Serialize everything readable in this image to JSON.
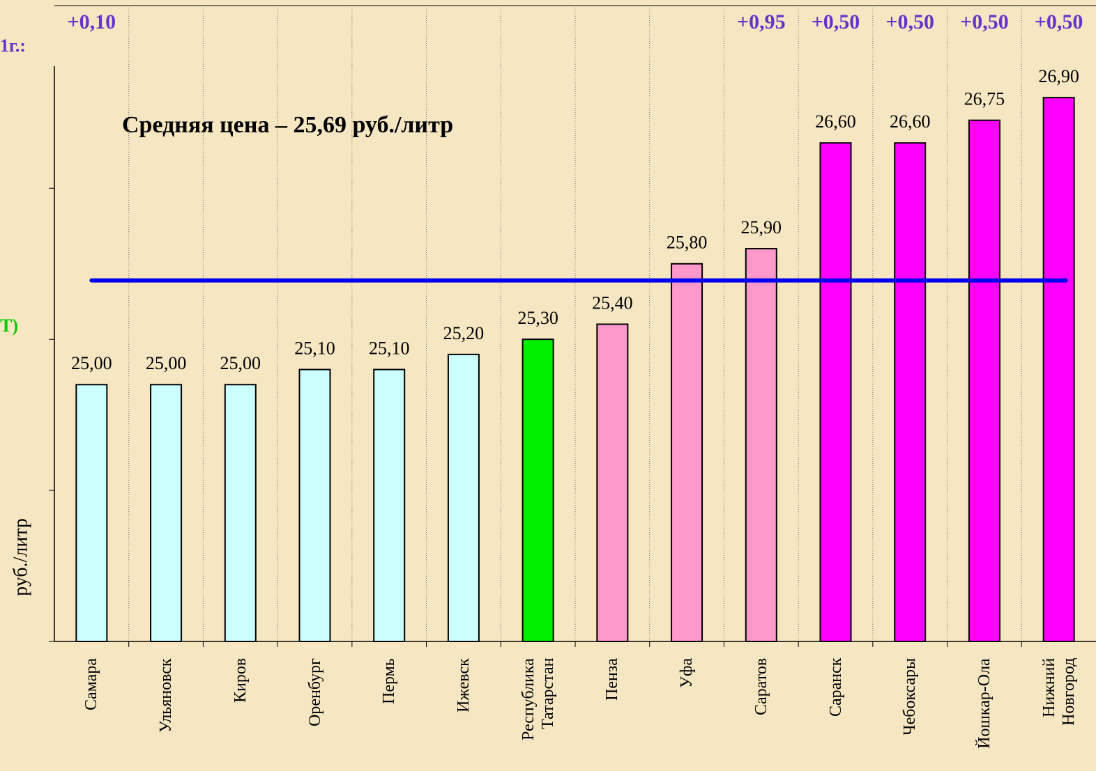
{
  "chart_data": {
    "type": "bar",
    "title": "Средняя цена – 25,69 руб./литр",
    "y_label": "руб./литр",
    "side_notes": [
      "1г.:",
      "Т)"
    ],
    "categories": [
      "Самара",
      "Ульяновск",
      "Киров",
      "Оренбург",
      "Пермь",
      "Ижевск",
      "Республика Татарстан",
      "Пенза",
      "Уфа",
      "Саратов",
      "Саранск",
      "Чебоксары",
      "Йошкар-Ола",
      "Нижний Новгород"
    ],
    "values": [
      25.0,
      25.0,
      25.0,
      25.1,
      25.1,
      25.2,
      25.3,
      25.4,
      25.8,
      25.9,
      26.6,
      26.6,
      26.75,
      26.9
    ],
    "value_labels": [
      "25,00",
      "25,00",
      "25,00",
      "25,10",
      "25,10",
      "25,20",
      "25,30",
      "25,40",
      "25,80",
      "25,90",
      "26,60",
      "26,60",
      "26,75",
      "26,90"
    ],
    "colors": [
      "#ccffff",
      "#ccffff",
      "#ccffff",
      "#ccffff",
      "#ccffff",
      "#ccffff",
      "#00ee00",
      "#ff99cc",
      "#ff99cc",
      "#ff99cc",
      "#ff00ff",
      "#ff00ff",
      "#ff00ff",
      "#ff00ff"
    ],
    "change_labels": [
      "+0,10",
      null,
      null,
      null,
      null,
      null,
      null,
      null,
      null,
      "+0,95",
      "+0,50",
      "+0,50",
      "+0,50",
      "+0,50"
    ],
    "average": 25.69,
    "average_color": "#0000ee",
    "ylim": [
      23.3,
      27.5
    ],
    "yticks": [
      23.3,
      24.3,
      25.3,
      26.3
    ]
  }
}
